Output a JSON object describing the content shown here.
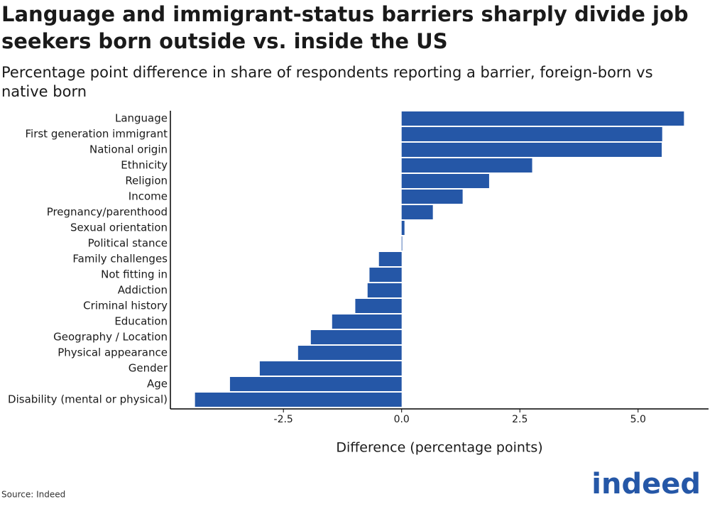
{
  "chart_data": {
    "type": "bar",
    "orientation": "horizontal",
    "title": "Language and immigrant-status barriers sharply divide job seekers born outside vs. inside the US",
    "subtitle": "Percentage point difference in share of respondents reporting a barrier, foreign-born vs native born",
    "x_label": "Difference (percentage points)",
    "source": "Source: Indeed",
    "logo": "indeed",
    "color": "#2557a7",
    "categories": [
      "Language",
      "First generation immigrant",
      "National origin",
      "Ethnicity",
      "Religion",
      "Income",
      "Pregnancy/parenthood",
      "Sexual orientation",
      "Political stance",
      "Family challenges",
      "Not fitting in",
      "Addiction",
      "Criminal history",
      "Education",
      "Geography / Location",
      "Physical appearance",
      "Gender",
      "Age",
      "Disability (mental or physical)"
    ],
    "values": [
      5.97,
      5.51,
      5.5,
      2.76,
      1.85,
      1.29,
      0.66,
      0.06,
      0.01,
      -0.48,
      -0.68,
      -0.72,
      -0.98,
      -1.47,
      -1.92,
      -2.19,
      -3.0,
      -3.63,
      -4.37
    ],
    "xlim": [
      -4.89,
      6.49
    ],
    "xticks": [
      -2.5,
      {
        "value": 0,
        "label": "0.0"
      },
      2.5,
      {
        "value": 5,
        "label": "5.0"
      }
    ]
  }
}
